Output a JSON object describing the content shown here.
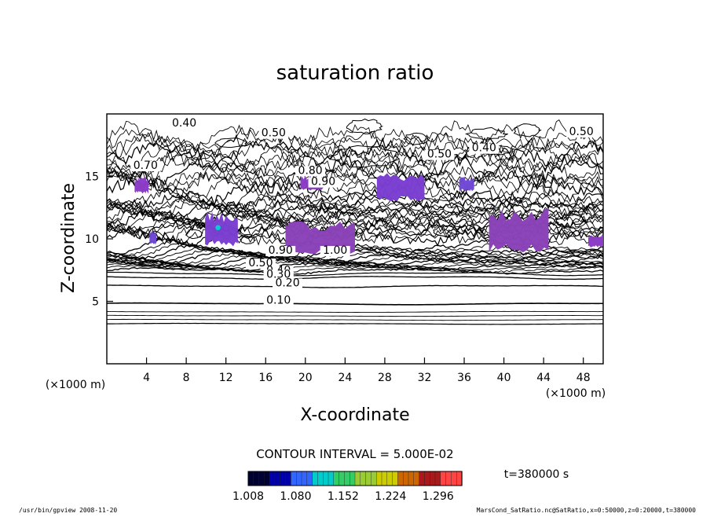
{
  "chart_data": {
    "type": "contour",
    "title": "saturation ratio",
    "xlabel": "X-coordinate",
    "ylabel": "Z-coordinate",
    "x_unit_label": "(×1000 m)",
    "y_unit_label": "(×1000 m)",
    "xlim": [
      0,
      50
    ],
    "ylim": [
      0,
      20
    ],
    "x_ticks": [
      4,
      8,
      12,
      16,
      20,
      24,
      28,
      32,
      36,
      40,
      44,
      48
    ],
    "y_ticks": [
      5,
      10,
      15
    ],
    "contour_interval_text": "CONTOUR INTERVAL = 5.000E-02",
    "time_label": "t=380000 s",
    "colorbar": {
      "min": 1.008,
      "max": 1.332,
      "tick_labels": [
        "1.008",
        "1.080",
        "1.152",
        "1.224",
        "1.296"
      ],
      "colors": [
        "#000033",
        "#0000aa",
        "#3366ff",
        "#00cccc",
        "#33cc66",
        "#99cc33",
        "#cccc00",
        "#cc6600",
        "#aa1a1a",
        "#ff4444"
      ]
    },
    "contour_labels": [
      {
        "text": "0.40",
        "x": 7.8,
        "z": 19.0
      },
      {
        "text": "0.50",
        "x": 16.8,
        "z": 18.2
      },
      {
        "text": "0.70",
        "x": 3.9,
        "z": 15.6
      },
      {
        "text": "0.40",
        "x": 38.0,
        "z": 17.0
      },
      {
        "text": "0.50",
        "x": 47.8,
        "z": 18.3
      },
      {
        "text": "0.50",
        "x": 33.5,
        "z": 16.5
      },
      {
        "text": "0.80",
        "x": 20.5,
        "z": 15.2
      },
      {
        "text": "0.90",
        "x": 21.8,
        "z": 14.3
      },
      {
        "text": "0.90",
        "x": 17.5,
        "z": 8.8
      },
      {
        "text": "1.00",
        "x": 23.0,
        "z": 8.8
      },
      {
        "text": "0.50",
        "x": 15.5,
        "z": 7.8
      },
      {
        "text": "0.40",
        "x": 17.3,
        "z": 7.2
      },
      {
        "text": "0.30",
        "x": 17.3,
        "z": 6.9
      },
      {
        "text": "0.20",
        "x": 18.2,
        "z": 6.2
      },
      {
        "text": "0.10",
        "x": 17.3,
        "z": 4.8
      }
    ],
    "supersaturated_regions": [
      {
        "x": [
          2.8,
          4.2
        ],
        "z": [
          13.6,
          15.0
        ],
        "max_ratio": 1.05
      },
      {
        "x": [
          9.9,
          13.2
        ],
        "z": [
          9.4,
          12.2
        ],
        "max_ratio": 1.12
      },
      {
        "x": [
          4.3,
          5.0
        ],
        "z": [
          9.5,
          10.6
        ],
        "max_ratio": 1.03
      },
      {
        "x": [
          18.0,
          25.0
        ],
        "z": [
          8.8,
          11.5
        ],
        "max_ratio": 1.06
      },
      {
        "x": [
          19.5,
          21.8
        ],
        "z": [
          13.9,
          15.1
        ],
        "max_ratio": 1.04
      },
      {
        "x": [
          27.2,
          32.0
        ],
        "z": [
          13.0,
          15.4
        ],
        "max_ratio": 1.05
      },
      {
        "x": [
          35.5,
          37.0
        ],
        "z": [
          13.8,
          15.0
        ],
        "max_ratio": 1.03
      },
      {
        "x": [
          38.5,
          44.5
        ],
        "z": [
          8.9,
          12.6
        ],
        "max_ratio": 1.08
      },
      {
        "x": [
          48.5,
          50.0
        ],
        "z": [
          9.3,
          10.4
        ],
        "max_ratio": 1.03
      }
    ],
    "grid": false,
    "legend": "none"
  },
  "footer": {
    "left": "/usr/bin/gpview   2008-11-20",
    "right": "MarsCond_SatRatio.nc@SatRatio,x=0:50000,z=0:20000,t=380000"
  }
}
